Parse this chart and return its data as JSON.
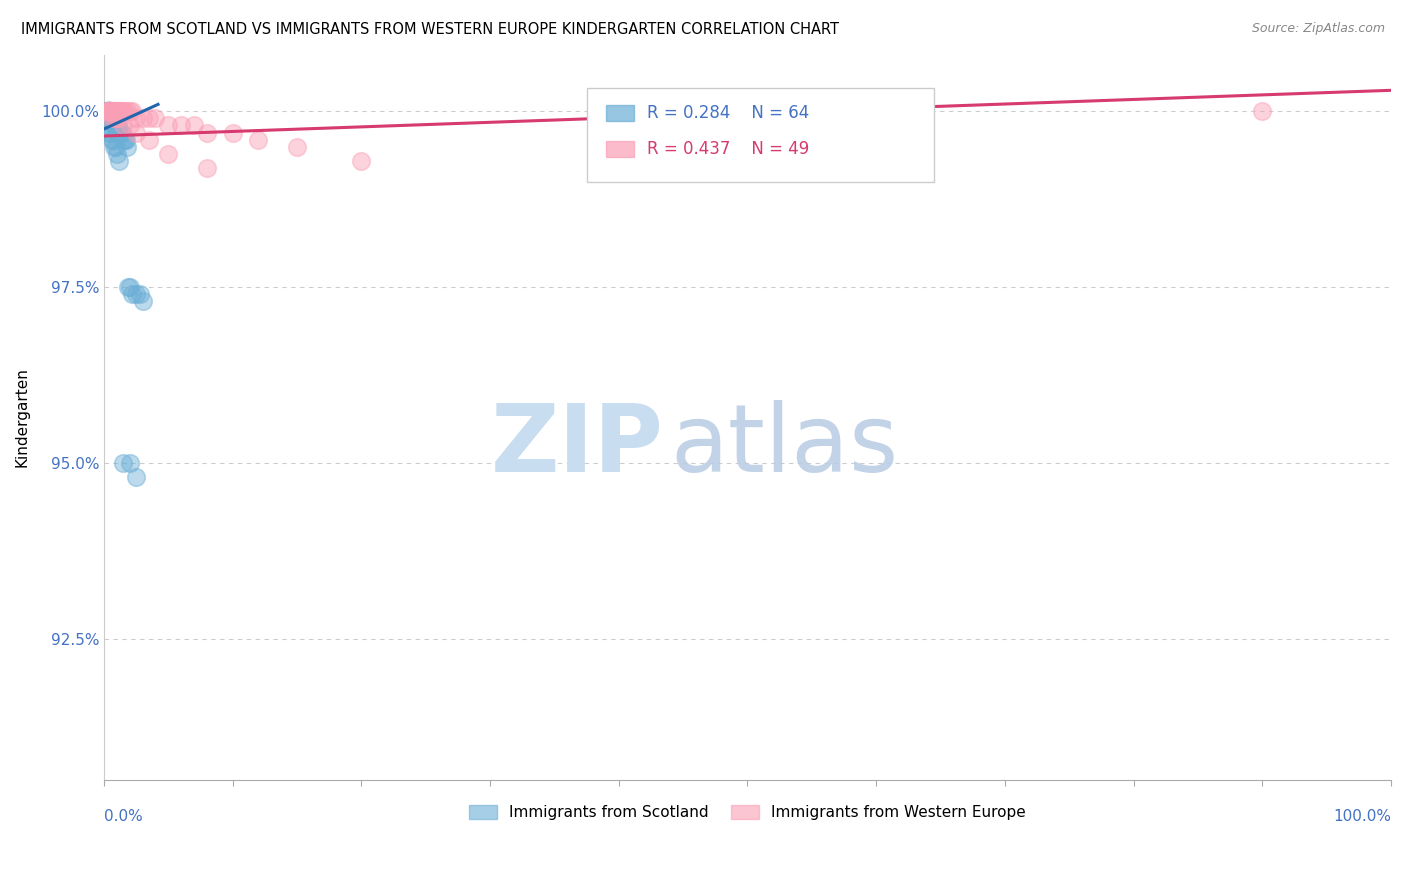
{
  "title": "IMMIGRANTS FROM SCOTLAND VS IMMIGRANTS FROM WESTERN EUROPE KINDERGARTEN CORRELATION CHART",
  "source": "Source: ZipAtlas.com",
  "ylabel": "Kindergarten",
  "ytick_labels": [
    "100.0%",
    "97.5%",
    "95.0%",
    "92.5%"
  ],
  "ytick_values": [
    1.0,
    0.975,
    0.95,
    0.925
  ],
  "xlim": [
    0.0,
    1.0
  ],
  "ylim": [
    0.905,
    1.008
  ],
  "legend1_R": "0.284",
  "legend1_N": "64",
  "legend2_R": "0.437",
  "legend2_N": "49",
  "color_scotland": "#6baed6",
  "color_western_europe": "#fa9fb5",
  "color_trendline_scotland": "#2166ac",
  "color_trendline_western_europe": "#d63a6e",
  "color_text_blue": "#4472c4",
  "watermark_color": "#ddeeff",
  "background_color": "#ffffff",
  "grid_color": "#cccccc",
  "scotland_x": [
    0.001,
    0.002,
    0.002,
    0.002,
    0.003,
    0.003,
    0.003,
    0.003,
    0.003,
    0.004,
    0.004,
    0.004,
    0.004,
    0.005,
    0.005,
    0.005,
    0.005,
    0.005,
    0.006,
    0.006,
    0.006,
    0.006,
    0.007,
    0.007,
    0.007,
    0.007,
    0.008,
    0.008,
    0.008,
    0.008,
    0.009,
    0.009,
    0.009,
    0.01,
    0.01,
    0.01,
    0.011,
    0.011,
    0.012,
    0.012,
    0.013,
    0.014,
    0.015,
    0.016,
    0.017,
    0.018,
    0.019,
    0.02,
    0.022,
    0.025,
    0.028,
    0.03,
    0.003,
    0.004,
    0.005,
    0.006,
    0.007,
    0.008,
    0.009,
    0.01,
    0.012,
    0.015,
    0.02,
    0.025
  ],
  "scotland_y": [
    1.0,
    1.0,
    1.0,
    1.0,
    1.0,
    1.0,
    1.0,
    1.0,
    1.0,
    1.0,
    1.0,
    1.0,
    1.0,
    1.0,
    1.0,
    1.0,
    1.0,
    1.0,
    0.999,
    0.999,
    0.999,
    0.999,
    0.999,
    0.999,
    0.999,
    0.999,
    0.999,
    0.999,
    0.998,
    0.998,
    0.998,
    0.998,
    0.998,
    0.998,
    0.998,
    0.998,
    0.998,
    0.997,
    0.997,
    0.997,
    0.997,
    0.997,
    0.996,
    0.996,
    0.996,
    0.995,
    0.975,
    0.975,
    0.974,
    0.974,
    0.974,
    0.973,
    0.998,
    0.997,
    0.997,
    0.996,
    0.996,
    0.995,
    0.995,
    0.994,
    0.993,
    0.95,
    0.95,
    0.948
  ],
  "western_europe_x": [
    0.002,
    0.003,
    0.003,
    0.004,
    0.004,
    0.005,
    0.005,
    0.006,
    0.006,
    0.007,
    0.007,
    0.008,
    0.008,
    0.009,
    0.01,
    0.01,
    0.011,
    0.012,
    0.013,
    0.014,
    0.015,
    0.016,
    0.018,
    0.02,
    0.022,
    0.025,
    0.03,
    0.035,
    0.04,
    0.05,
    0.06,
    0.07,
    0.08,
    0.1,
    0.12,
    0.15,
    0.2,
    0.004,
    0.006,
    0.008,
    0.01,
    0.012,
    0.015,
    0.02,
    0.025,
    0.035,
    0.05,
    0.08,
    0.9
  ],
  "western_europe_y": [
    1.0,
    1.0,
    1.0,
    1.0,
    1.0,
    1.0,
    1.0,
    1.0,
    1.0,
    1.0,
    1.0,
    1.0,
    1.0,
    1.0,
    1.0,
    1.0,
    1.0,
    1.0,
    1.0,
    1.0,
    1.0,
    1.0,
    1.0,
    1.0,
    1.0,
    0.999,
    0.999,
    0.999,
    0.999,
    0.998,
    0.998,
    0.998,
    0.997,
    0.997,
    0.996,
    0.995,
    0.993,
    1.0,
    0.999,
    0.999,
    0.999,
    0.999,
    0.998,
    0.998,
    0.997,
    0.996,
    0.994,
    0.992,
    1.0
  ],
  "sc_trendline_x": [
    0.0,
    0.042
  ],
  "sc_trendline_y": [
    0.9975,
    1.001
  ],
  "we_trendline_x": [
    0.0,
    1.0
  ],
  "we_trendline_y": [
    0.9965,
    1.003
  ]
}
